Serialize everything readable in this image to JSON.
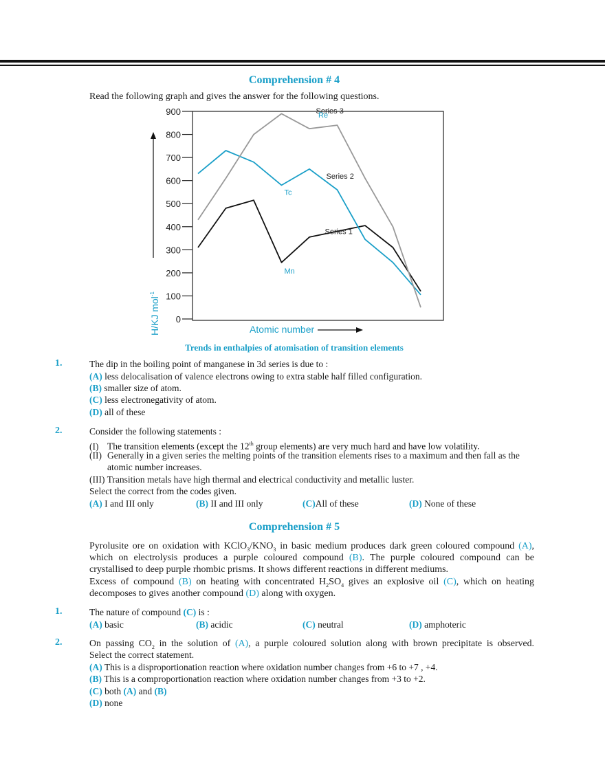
{
  "comp4": {
    "heading": "Comprehension # 4",
    "intro": "Read the following graph and gives the answer for the following questions.",
    "caption": "Trends in enthalpies of atomisation of transition elements",
    "q1": {
      "num": "1.",
      "text": "The dip in the boiling point of manganese in 3d series is due to :",
      "options": [
        {
          "label": "(A)",
          "text": "less delocalisation of valence electrons owing to extra stable half filled configuration."
        },
        {
          "label": "(B)",
          "text": "smaller size of atom."
        },
        {
          "label": "(C)",
          "text": "less electronegativity of atom."
        },
        {
          "label": "(D)",
          "text": "all of these"
        }
      ]
    },
    "q2": {
      "num": "2.",
      "text": "Consider the following statements :",
      "s1_label": "(I)",
      "s1_a": "The transition elements (except the 12",
      "s1_sup": "th",
      "s1_b": " group elements) are very much hard and have low volatility.",
      "s2_label": "(II)",
      "s2_text": "Generally in a given series the melting points of the transition elements rises to a maximum and then fall as the",
      "s2_cont": "atomic number increases.",
      "s3": "(III) Transition metals have high thermal and electrical conductivity and metallic luster.",
      "select": "Select the correct from the codes given.",
      "options": [
        {
          "label": "(A)",
          "text": "I and III only"
        },
        {
          "label": "(B)",
          "text": "II and III only"
        },
        {
          "label": "(C)",
          "text": "All of these"
        },
        {
          "label": "(D)",
          "text": "None of these"
        }
      ]
    }
  },
  "comp5": {
    "heading": "Comprehension # 5",
    "p1": "Pyrolusite ore on oxidation with KClO",
    "p1_sub1": "3",
    "p1_mid": "/KNO",
    "p1_sub2": "3",
    "p1_b": " in basic medium produces dark green coloured compound ",
    "p1_A": "(A)",
    "p1_end": ",",
    "p2_a": "which on electrolysis produces a purple coloured compound ",
    "p2_B": "(B)",
    "p2_b": ". The purple coloured compound can be",
    "p3": "crystallised to deep purple rhombic prisms. It shows different reactions in different mediums.",
    "p4_a": "Excess of compound ",
    "p4_B": "(B)",
    "p4_b": " on heating with concentrated H",
    "p4_sub1": "2",
    "p4_c": "SO",
    "p4_sub2": "4",
    "p4_d": " gives an explosive oil ",
    "p4_C": "(C)",
    "p4_e": ", which on heating",
    "p5_a": "decomposes to gives another compound ",
    "p5_D": "(D)",
    "p5_b": " along with oxygen.",
    "q1": {
      "num": "1.",
      "text_a": "The nature of compound ",
      "text_C": "(C)",
      "text_b": " is :",
      "options": [
        {
          "label": "(A)",
          "text": "basic"
        },
        {
          "label": "(B)",
          "text": "acidic"
        },
        {
          "label": "(C)",
          "text": "neutral"
        },
        {
          "label": "(D)",
          "text": "amphoteric"
        }
      ]
    },
    "q2": {
      "num": "2.",
      "l1_a": "On passing CO",
      "l1_sub": "2",
      "l1_b": " in the solution of ",
      "l1_A": "(A)",
      "l1_c": ", a purple coloured solution along with brown precipitate is observed.",
      "l2": "Select the correct statement.",
      "optA_label": "(A)",
      "optA": "This is a disproportionation reaction where oxidation number changes from +6 to +7 , +4.",
      "optB_label": "(B)",
      "optB": "This is a comproportionation reaction where oxidation number changes from +3 to +2.",
      "optC_label": "(C)",
      "optC_a": "both ",
      "optC_A": "(A)",
      "optC_b": " and ",
      "optC_B": "(B)",
      "optD_label": "(D)",
      "optD": "none"
    }
  },
  "chart_data": {
    "type": "line",
    "ylabel": "H/KJ mol",
    "ylabel_sup": "-1",
    "xlabel": "Atomic number",
    "ylim": [
      0,
      900
    ],
    "yticks": [
      "0",
      "100",
      "200",
      "300",
      "400",
      "500",
      "600",
      "700",
      "800",
      "900"
    ],
    "grid": false,
    "series": [
      {
        "name": "Series 1",
        "color": "#111111",
        "values": [
          310,
          480,
          515,
          245,
          355,
          380,
          405,
          310,
          120
        ]
      },
      {
        "name": "Series 2",
        "color": "#1a9fc8",
        "values": [
          630,
          730,
          680,
          580,
          650,
          560,
          345,
          245,
          105
        ]
      },
      {
        "name": "Series 3",
        "color": "#999999",
        "values": [
          430,
          610,
          800,
          890,
          825,
          840,
          610,
          400,
          50
        ]
      }
    ],
    "x": [
      1,
      2,
      3,
      4,
      5,
      6,
      7,
      8,
      9
    ],
    "annotations": [
      {
        "text": "Re",
        "series": "Series 3"
      },
      {
        "text": "Tc",
        "series": "Series 2"
      },
      {
        "text": "Mn",
        "series": "Series 1"
      }
    ]
  }
}
